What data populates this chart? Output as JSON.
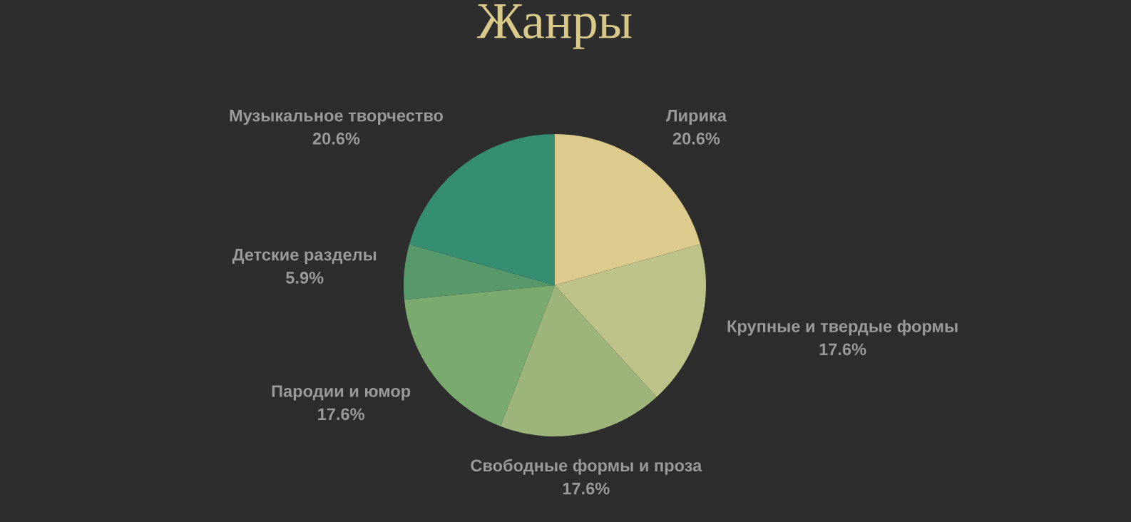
{
  "chart_data": {
    "type": "pie",
    "title": "Жанры",
    "categories": [
      "Лирика",
      "Крупные и твердые формы",
      "Свободные формы и проза",
      "Пародии и юмор",
      "Детские разделы",
      "Музыкальное творчество"
    ],
    "values": [
      20.6,
      17.6,
      17.6,
      17.6,
      5.9,
      20.6
    ],
    "value_labels": [
      "20.6%",
      "17.6%",
      "17.6%",
      "17.6%",
      "5.9%",
      "20.6%"
    ],
    "colors": [
      "#dccb8c",
      "#bcc288",
      "#9db57a",
      "#7aaa6e",
      "#58996c",
      "#358d72"
    ],
    "legend": false
  }
}
